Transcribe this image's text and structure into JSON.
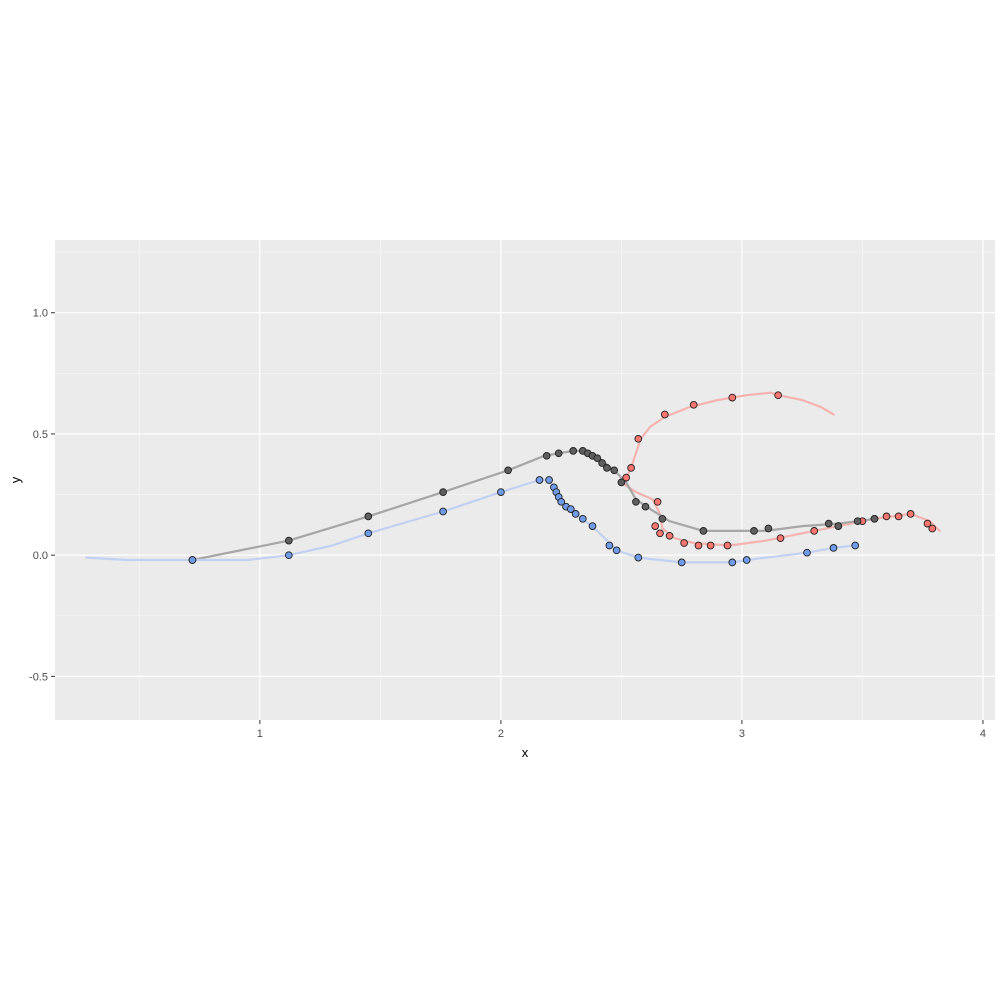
{
  "chart_data": {
    "type": "scatter",
    "title": "",
    "xlabel": "x",
    "ylabel": "y",
    "xlim": [
      0.15,
      4.05
    ],
    "ylim": [
      -0.68,
      1.3
    ],
    "x_ticks": [
      1,
      2,
      3,
      4
    ],
    "x_tick_labels": [
      "1",
      "2",
      "3",
      "4"
    ],
    "y_ticks": [
      -0.5,
      0.0,
      0.5,
      1.0
    ],
    "y_tick_labels": [
      "-0.5",
      "0.0",
      "0.5",
      "1.0"
    ],
    "grid": true,
    "legend": "none",
    "panel_background": "#ebebeb",
    "series": [
      {
        "color": "#f8766d",
        "path_color": "#f7b3b0",
        "path": [
          [
            2.5,
            0.3
          ],
          [
            2.52,
            0.32
          ],
          [
            2.54,
            0.36
          ],
          [
            2.56,
            0.42
          ],
          [
            2.58,
            0.48
          ],
          [
            2.62,
            0.53
          ],
          [
            2.68,
            0.57
          ],
          [
            2.78,
            0.61
          ],
          [
            2.9,
            0.64
          ],
          [
            3.02,
            0.66
          ],
          [
            3.12,
            0.67
          ],
          [
            3.15,
            0.66
          ],
          [
            3.25,
            0.64
          ],
          [
            3.33,
            0.61
          ],
          [
            3.38,
            0.58
          ]
        ],
        "path2": [
          [
            2.5,
            0.3
          ],
          [
            2.56,
            0.26
          ],
          [
            2.63,
            0.23
          ],
          [
            2.66,
            0.17
          ],
          [
            2.67,
            0.11
          ],
          [
            2.72,
            0.07
          ],
          [
            2.8,
            0.05
          ],
          [
            2.95,
            0.04
          ],
          [
            3.1,
            0.06
          ],
          [
            3.25,
            0.09
          ],
          [
            3.4,
            0.12
          ],
          [
            3.55,
            0.15
          ],
          [
            3.7,
            0.17
          ],
          [
            3.78,
            0.14
          ],
          [
            3.82,
            0.1
          ]
        ],
        "points": [
          [
            2.52,
            0.32
          ],
          [
            2.54,
            0.36
          ],
          [
            2.57,
            0.48
          ],
          [
            2.68,
            0.58
          ],
          [
            2.8,
            0.62
          ],
          [
            2.96,
            0.65
          ],
          [
            3.15,
            0.66
          ],
          [
            2.65,
            0.22
          ],
          [
            2.64,
            0.12
          ],
          [
            2.66,
            0.09
          ],
          [
            2.7,
            0.08
          ],
          [
            2.76,
            0.05
          ],
          [
            2.82,
            0.04
          ],
          [
            2.87,
            0.04
          ],
          [
            2.94,
            0.04
          ],
          [
            3.16,
            0.07
          ],
          [
            3.3,
            0.1
          ],
          [
            3.4,
            0.12
          ],
          [
            3.5,
            0.14
          ],
          [
            3.55,
            0.15
          ],
          [
            3.6,
            0.16
          ],
          [
            3.65,
            0.16
          ],
          [
            3.7,
            0.17
          ],
          [
            3.77,
            0.13
          ],
          [
            3.79,
            0.11
          ]
        ]
      },
      {
        "color": "#5f5f5f",
        "path_color": "#a6a6a6",
        "path": [
          [
            0.72,
            -0.02
          ],
          [
            1.12,
            0.06
          ],
          [
            1.45,
            0.16
          ],
          [
            1.76,
            0.26
          ],
          [
            2.03,
            0.35
          ],
          [
            2.18,
            0.41
          ],
          [
            2.24,
            0.42
          ],
          [
            2.3,
            0.43
          ],
          [
            2.34,
            0.43
          ],
          [
            2.38,
            0.42
          ],
          [
            2.42,
            0.39
          ],
          [
            2.47,
            0.35
          ],
          [
            2.52,
            0.3
          ],
          [
            2.56,
            0.23
          ],
          [
            2.62,
            0.19
          ],
          [
            2.7,
            0.14
          ],
          [
            2.84,
            0.1
          ],
          [
            3.0,
            0.1
          ],
          [
            3.1,
            0.1
          ],
          [
            3.25,
            0.12
          ],
          [
            3.4,
            0.13
          ],
          [
            3.48,
            0.14
          ],
          [
            3.55,
            0.15
          ]
        ],
        "points": [
          [
            0.72,
            -0.02
          ],
          [
            1.12,
            0.06
          ],
          [
            1.45,
            0.16
          ],
          [
            1.76,
            0.26
          ],
          [
            2.03,
            0.35
          ],
          [
            2.19,
            0.41
          ],
          [
            2.24,
            0.42
          ],
          [
            2.3,
            0.43
          ],
          [
            2.34,
            0.43
          ],
          [
            2.36,
            0.42
          ],
          [
            2.38,
            0.41
          ],
          [
            2.4,
            0.4
          ],
          [
            2.42,
            0.38
          ],
          [
            2.44,
            0.36
          ],
          [
            2.47,
            0.35
          ],
          [
            2.5,
            0.3
          ],
          [
            2.56,
            0.22
          ],
          [
            2.6,
            0.2
          ],
          [
            2.67,
            0.15
          ],
          [
            2.84,
            0.1
          ],
          [
            3.05,
            0.1
          ],
          [
            3.11,
            0.11
          ],
          [
            3.36,
            0.13
          ],
          [
            3.4,
            0.12
          ],
          [
            3.48,
            0.14
          ],
          [
            3.55,
            0.15
          ]
        ]
      },
      {
        "color": "#6f9be8",
        "path_color": "#c2d1f2",
        "path": [
          [
            0.28,
            -0.01
          ],
          [
            0.45,
            -0.02
          ],
          [
            0.72,
            -0.02
          ],
          [
            0.95,
            -0.02
          ],
          [
            1.12,
            0.0
          ],
          [
            1.3,
            0.04
          ],
          [
            1.45,
            0.09
          ],
          [
            1.76,
            0.18
          ],
          [
            2.0,
            0.26
          ],
          [
            2.16,
            0.31
          ],
          [
            2.2,
            0.31
          ],
          [
            2.22,
            0.28
          ],
          [
            2.24,
            0.24
          ],
          [
            2.28,
            0.19
          ],
          [
            2.34,
            0.15
          ],
          [
            2.4,
            0.1
          ],
          [
            2.48,
            0.02
          ],
          [
            2.57,
            -0.01
          ],
          [
            2.75,
            -0.03
          ],
          [
            2.96,
            -0.03
          ],
          [
            3.02,
            -0.02
          ],
          [
            3.27,
            0.01
          ],
          [
            3.38,
            0.03
          ],
          [
            3.47,
            0.04
          ]
        ],
        "points": [
          [
            0.72,
            -0.02
          ],
          [
            1.12,
            0.0
          ],
          [
            1.45,
            0.09
          ],
          [
            1.76,
            0.18
          ],
          [
            2.0,
            0.26
          ],
          [
            2.16,
            0.31
          ],
          [
            2.2,
            0.31
          ],
          [
            2.22,
            0.28
          ],
          [
            2.23,
            0.26
          ],
          [
            2.24,
            0.24
          ],
          [
            2.25,
            0.22
          ],
          [
            2.27,
            0.2
          ],
          [
            2.29,
            0.19
          ],
          [
            2.31,
            0.17
          ],
          [
            2.34,
            0.15
          ],
          [
            2.38,
            0.12
          ],
          [
            2.45,
            0.04
          ],
          [
            2.48,
            0.02
          ],
          [
            2.57,
            -0.01
          ],
          [
            2.75,
            -0.03
          ],
          [
            2.96,
            -0.03
          ],
          [
            3.02,
            -0.02
          ],
          [
            3.27,
            0.01
          ],
          [
            3.38,
            0.03
          ],
          [
            3.47,
            0.04
          ]
        ]
      }
    ]
  }
}
